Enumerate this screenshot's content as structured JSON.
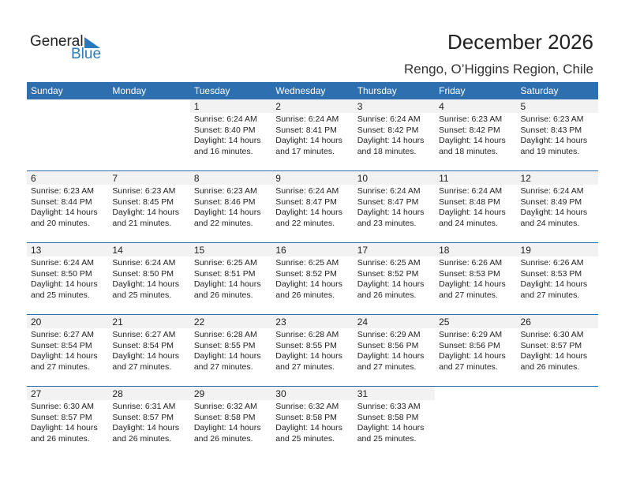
{
  "logo": {
    "text1": "General",
    "text2": "Blue"
  },
  "title": "December 2026",
  "subtitle": "Rengo, O’Higgins Region, Chile",
  "colors": {
    "header": "#2e6fb0",
    "day_band": "#f2f2f2"
  },
  "weekdays": [
    "Sunday",
    "Monday",
    "Tuesday",
    "Wednesday",
    "Thursday",
    "Friday",
    "Saturday"
  ],
  "weeks": [
    [
      null,
      null,
      {
        "day": "1",
        "sunrise": "Sunrise: 6:24 AM",
        "sunset": "Sunset: 8:40 PM",
        "daylight": "Daylight: 14 hours",
        "minutes": "and 16 minutes."
      },
      {
        "day": "2",
        "sunrise": "Sunrise: 6:24 AM",
        "sunset": "Sunset: 8:41 PM",
        "daylight": "Daylight: 14 hours",
        "minutes": "and 17 minutes."
      },
      {
        "day": "3",
        "sunrise": "Sunrise: 6:24 AM",
        "sunset": "Sunset: 8:42 PM",
        "daylight": "Daylight: 14 hours",
        "minutes": "and 18 minutes."
      },
      {
        "day": "4",
        "sunrise": "Sunrise: 6:23 AM",
        "sunset": "Sunset: 8:42 PM",
        "daylight": "Daylight: 14 hours",
        "minutes": "and 18 minutes."
      },
      {
        "day": "5",
        "sunrise": "Sunrise: 6:23 AM",
        "sunset": "Sunset: 8:43 PM",
        "daylight": "Daylight: 14 hours",
        "minutes": "and 19 minutes."
      }
    ],
    [
      {
        "day": "6",
        "sunrise": "Sunrise: 6:23 AM",
        "sunset": "Sunset: 8:44 PM",
        "daylight": "Daylight: 14 hours",
        "minutes": "and 20 minutes."
      },
      {
        "day": "7",
        "sunrise": "Sunrise: 6:23 AM",
        "sunset": "Sunset: 8:45 PM",
        "daylight": "Daylight: 14 hours",
        "minutes": "and 21 minutes."
      },
      {
        "day": "8",
        "sunrise": "Sunrise: 6:23 AM",
        "sunset": "Sunset: 8:46 PM",
        "daylight": "Daylight: 14 hours",
        "minutes": "and 22 minutes."
      },
      {
        "day": "9",
        "sunrise": "Sunrise: 6:24 AM",
        "sunset": "Sunset: 8:47 PM",
        "daylight": "Daylight: 14 hours",
        "minutes": "and 22 minutes."
      },
      {
        "day": "10",
        "sunrise": "Sunrise: 6:24 AM",
        "sunset": "Sunset: 8:47 PM",
        "daylight": "Daylight: 14 hours",
        "minutes": "and 23 minutes."
      },
      {
        "day": "11",
        "sunrise": "Sunrise: 6:24 AM",
        "sunset": "Sunset: 8:48 PM",
        "daylight": "Daylight: 14 hours",
        "minutes": "and 24 minutes."
      },
      {
        "day": "12",
        "sunrise": "Sunrise: 6:24 AM",
        "sunset": "Sunset: 8:49 PM",
        "daylight": "Daylight: 14 hours",
        "minutes": "and 24 minutes."
      }
    ],
    [
      {
        "day": "13",
        "sunrise": "Sunrise: 6:24 AM",
        "sunset": "Sunset: 8:50 PM",
        "daylight": "Daylight: 14 hours",
        "minutes": "and 25 minutes."
      },
      {
        "day": "14",
        "sunrise": "Sunrise: 6:24 AM",
        "sunset": "Sunset: 8:50 PM",
        "daylight": "Daylight: 14 hours",
        "minutes": "and 25 minutes."
      },
      {
        "day": "15",
        "sunrise": "Sunrise: 6:25 AM",
        "sunset": "Sunset: 8:51 PM",
        "daylight": "Daylight: 14 hours",
        "minutes": "and 26 minutes."
      },
      {
        "day": "16",
        "sunrise": "Sunrise: 6:25 AM",
        "sunset": "Sunset: 8:52 PM",
        "daylight": "Daylight: 14 hours",
        "minutes": "and 26 minutes."
      },
      {
        "day": "17",
        "sunrise": "Sunrise: 6:25 AM",
        "sunset": "Sunset: 8:52 PM",
        "daylight": "Daylight: 14 hours",
        "minutes": "and 26 minutes."
      },
      {
        "day": "18",
        "sunrise": "Sunrise: 6:26 AM",
        "sunset": "Sunset: 8:53 PM",
        "daylight": "Daylight: 14 hours",
        "minutes": "and 27 minutes."
      },
      {
        "day": "19",
        "sunrise": "Sunrise: 6:26 AM",
        "sunset": "Sunset: 8:53 PM",
        "daylight": "Daylight: 14 hours",
        "minutes": "and 27 minutes."
      }
    ],
    [
      {
        "day": "20",
        "sunrise": "Sunrise: 6:27 AM",
        "sunset": "Sunset: 8:54 PM",
        "daylight": "Daylight: 14 hours",
        "minutes": "and 27 minutes."
      },
      {
        "day": "21",
        "sunrise": "Sunrise: 6:27 AM",
        "sunset": "Sunset: 8:54 PM",
        "daylight": "Daylight: 14 hours",
        "minutes": "and 27 minutes."
      },
      {
        "day": "22",
        "sunrise": "Sunrise: 6:28 AM",
        "sunset": "Sunset: 8:55 PM",
        "daylight": "Daylight: 14 hours",
        "minutes": "and 27 minutes."
      },
      {
        "day": "23",
        "sunrise": "Sunrise: 6:28 AM",
        "sunset": "Sunset: 8:55 PM",
        "daylight": "Daylight: 14 hours",
        "minutes": "and 27 minutes."
      },
      {
        "day": "24",
        "sunrise": "Sunrise: 6:29 AM",
        "sunset": "Sunset: 8:56 PM",
        "daylight": "Daylight: 14 hours",
        "minutes": "and 27 minutes."
      },
      {
        "day": "25",
        "sunrise": "Sunrise: 6:29 AM",
        "sunset": "Sunset: 8:56 PM",
        "daylight": "Daylight: 14 hours",
        "minutes": "and 27 minutes."
      },
      {
        "day": "26",
        "sunrise": "Sunrise: 6:30 AM",
        "sunset": "Sunset: 8:57 PM",
        "daylight": "Daylight: 14 hours",
        "minutes": "and 26 minutes."
      }
    ],
    [
      {
        "day": "27",
        "sunrise": "Sunrise: 6:30 AM",
        "sunset": "Sunset: 8:57 PM",
        "daylight": "Daylight: 14 hours",
        "minutes": "and 26 minutes."
      },
      {
        "day": "28",
        "sunrise": "Sunrise: 6:31 AM",
        "sunset": "Sunset: 8:57 PM",
        "daylight": "Daylight: 14 hours",
        "minutes": "and 26 minutes."
      },
      {
        "day": "29",
        "sunrise": "Sunrise: 6:32 AM",
        "sunset": "Sunset: 8:58 PM",
        "daylight": "Daylight: 14 hours",
        "minutes": "and 26 minutes."
      },
      {
        "day": "30",
        "sunrise": "Sunrise: 6:32 AM",
        "sunset": "Sunset: 8:58 PM",
        "daylight": "Daylight: 14 hours",
        "minutes": "and 25 minutes."
      },
      {
        "day": "31",
        "sunrise": "Sunrise: 6:33 AM",
        "sunset": "Sunset: 8:58 PM",
        "daylight": "Daylight: 14 hours",
        "minutes": "and 25 minutes."
      },
      null,
      null
    ]
  ]
}
